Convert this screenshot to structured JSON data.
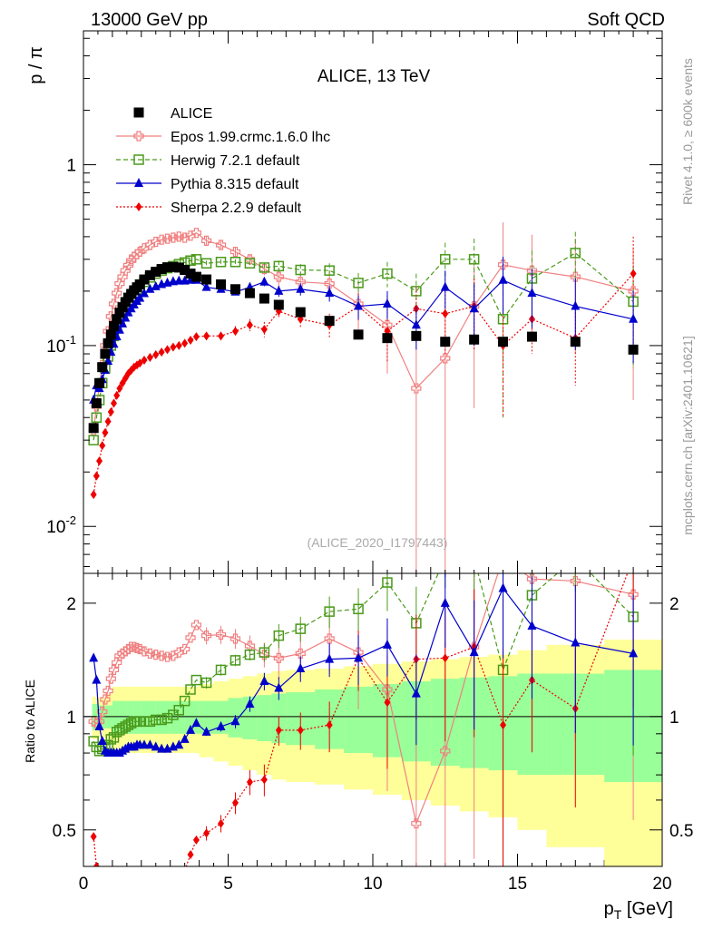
{
  "header": {
    "left": "13000 GeV pp",
    "right": "Soft QCD"
  },
  "side_labels": {
    "rivet": "Rivet 4.1.0, ≥ 600k events",
    "mcplots": "mcplots.cern.ch [arXiv:2401.10621]"
  },
  "chart_data": [
    {
      "type": "scatter",
      "panel": "main",
      "title": "ALICE, 13 TeV",
      "annotation": "(ALICE_2020_I1797443)",
      "xlabel": "p_T [GeV]",
      "ylabel": "p / π",
      "yscale": "log",
      "xlim": [
        0,
        20
      ],
      "ylim": [
        0.0055,
        5.5
      ],
      "yticks": [
        {
          "v": 0.01,
          "label": "10^-2"
        },
        {
          "v": 0.1,
          "label": "10^-1"
        },
        {
          "v": 1,
          "label": "1"
        }
      ],
      "legend_position": "top-left",
      "series": [
        {
          "name": "ALICE",
          "color": "#000000",
          "marker": "square",
          "line": "none",
          "x": [
            0.35,
            0.45,
            0.55,
            0.65,
            0.75,
            0.85,
            0.95,
            1.05,
            1.15,
            1.25,
            1.35,
            1.45,
            1.55,
            1.65,
            1.75,
            1.85,
            1.95,
            2.1,
            2.3,
            2.5,
            2.7,
            2.9,
            3.1,
            3.3,
            3.5,
            3.7,
            3.9,
            4.25,
            4.75,
            5.25,
            5.75,
            6.25,
            6.75,
            7.5,
            8.5,
            9.5,
            10.5,
            11.5,
            12.5,
            13.5,
            14.5,
            15.5,
            17,
            19
          ],
          "y": [
            0.035,
            0.048,
            0.062,
            0.076,
            0.09,
            0.103,
            0.115,
            0.128,
            0.14,
            0.152,
            0.163,
            0.174,
            0.184,
            0.193,
            0.202,
            0.21,
            0.218,
            0.232,
            0.245,
            0.256,
            0.265,
            0.271,
            0.272,
            0.27,
            0.262,
            0.25,
            0.24,
            0.232,
            0.218,
            0.205,
            0.195,
            0.182,
            0.168,
            0.153,
            0.137,
            0.115,
            0.11,
            0.113,
            0.105,
            0.108,
            0.105,
            0.112,
            0.105,
            0.095
          ]
        },
        {
          "name": "Epos 1.99.crmc.1.6.0 lhc",
          "color": "#f08080",
          "marker": "open-cross",
          "line": "solid",
          "x": [
            0.35,
            0.45,
            0.55,
            0.65,
            0.75,
            0.85,
            0.95,
            1.05,
            1.15,
            1.25,
            1.35,
            1.45,
            1.55,
            1.65,
            1.75,
            1.85,
            1.95,
            2.1,
            2.3,
            2.5,
            2.7,
            2.9,
            3.1,
            3.3,
            3.5,
            3.7,
            3.9,
            4.25,
            4.75,
            5.25,
            5.75,
            6.25,
            6.75,
            7.5,
            8.5,
            9.5,
            10.5,
            11.5,
            12.5,
            13.5,
            14.5,
            15.5,
            17,
            19
          ],
          "y": [
            0.034,
            0.046,
            0.06,
            0.078,
            0.1,
            0.12,
            0.145,
            0.17,
            0.195,
            0.22,
            0.24,
            0.26,
            0.278,
            0.295,
            0.31,
            0.32,
            0.33,
            0.345,
            0.36,
            0.375,
            0.385,
            0.39,
            0.395,
            0.4,
            0.395,
            0.405,
            0.42,
            0.38,
            0.36,
            0.33,
            0.3,
            0.265,
            0.24,
            0.225,
            0.22,
            0.17,
            0.13,
            0.058,
            0.085,
            0.165,
            0.28,
            0.26,
            0.24,
            0.2
          ],
          "err": [
            0,
            0,
            0,
            0,
            0,
            0,
            0,
            0,
            0,
            0,
            0,
            0,
            0,
            0,
            0,
            0,
            0,
            0,
            0,
            0,
            0,
            0,
            0,
            0,
            0,
            0,
            0,
            0.02,
            0.02,
            0.02,
            0.02,
            0.02,
            0.03,
            0.03,
            0.04,
            0.05,
            0.06,
            0.06,
            0.08,
            0.12,
            0.2,
            0.15,
            0.15,
            0.15
          ]
        },
        {
          "name": "Herwig 7.2.1 default",
          "color": "#4a9a1a",
          "marker": "open-square",
          "line": "dashed",
          "x": [
            0.35,
            0.45,
            0.55,
            0.65,
            0.75,
            0.85,
            0.95,
            1.05,
            1.15,
            1.25,
            1.35,
            1.45,
            1.55,
            1.65,
            1.75,
            1.85,
            1.95,
            2.1,
            2.3,
            2.5,
            2.7,
            2.9,
            3.1,
            3.3,
            3.5,
            3.7,
            3.9,
            4.25,
            4.75,
            5.25,
            5.75,
            6.25,
            6.75,
            7.5,
            8.5,
            9.5,
            10.5,
            11.5,
            12.5,
            13.5,
            14.5,
            15.5,
            17,
            19
          ],
          "y": [
            0.03,
            0.04,
            0.05,
            0.062,
            0.075,
            0.087,
            0.1,
            0.113,
            0.127,
            0.14,
            0.152,
            0.163,
            0.175,
            0.185,
            0.195,
            0.204,
            0.212,
            0.225,
            0.238,
            0.25,
            0.26,
            0.268,
            0.275,
            0.282,
            0.288,
            0.295,
            0.3,
            0.285,
            0.29,
            0.29,
            0.285,
            0.27,
            0.275,
            0.262,
            0.26,
            0.222,
            0.25,
            0.2,
            0.3,
            0.3,
            0.14,
            0.235,
            0.325,
            0.175
          ],
          "err": [
            0,
            0,
            0,
            0,
            0,
            0,
            0,
            0,
            0,
            0,
            0,
            0,
            0,
            0,
            0,
            0,
            0,
            0,
            0,
            0,
            0,
            0,
            0,
            0,
            0,
            0,
            0,
            0.01,
            0.01,
            0.01,
            0.01,
            0.015,
            0.02,
            0.02,
            0.025,
            0.03,
            0.04,
            0.05,
            0.07,
            0.09,
            0.1,
            0.1,
            0.1,
            0.1
          ]
        },
        {
          "name": "Pythia 8.315 default",
          "color": "#0000cc",
          "marker": "triangle",
          "line": "solid",
          "x": [
            0.35,
            0.45,
            0.55,
            0.65,
            0.75,
            0.85,
            0.95,
            1.05,
            1.15,
            1.25,
            1.35,
            1.45,
            1.55,
            1.65,
            1.75,
            1.85,
            1.95,
            2.1,
            2.3,
            2.5,
            2.7,
            2.9,
            3.1,
            3.3,
            3.5,
            3.7,
            3.9,
            4.25,
            4.75,
            5.25,
            5.75,
            6.25,
            6.75,
            7.5,
            8.5,
            9.5,
            10.5,
            11.5,
            12.5,
            13.5,
            14.5,
            15.5,
            17,
            19
          ],
          "y": [
            0.05,
            0.06,
            0.058,
            0.065,
            0.073,
            0.082,
            0.092,
            0.102,
            0.112,
            0.122,
            0.132,
            0.142,
            0.152,
            0.16,
            0.168,
            0.176,
            0.183,
            0.194,
            0.205,
            0.212,
            0.218,
            0.222,
            0.226,
            0.228,
            0.228,
            0.23,
            0.23,
            0.21,
            0.205,
            0.198,
            0.21,
            0.225,
            0.2,
            0.205,
            0.195,
            0.165,
            0.17,
            0.13,
            0.21,
            0.16,
            0.23,
            0.195,
            0.165,
            0.14
          ],
          "err": [
            0,
            0,
            0,
            0,
            0,
            0,
            0,
            0,
            0,
            0,
            0,
            0,
            0,
            0,
            0,
            0,
            0,
            0,
            0,
            0,
            0,
            0,
            0,
            0,
            0,
            0,
            0,
            0.005,
            0.006,
            0.008,
            0.01,
            0.012,
            0.014,
            0.016,
            0.02,
            0.025,
            0.03,
            0.035,
            0.05,
            0.06,
            0.08,
            0.07,
            0.07,
            0.06
          ]
        },
        {
          "name": "Sherpa 2.2.9 default",
          "color": "#ee0000",
          "marker": "diamond",
          "line": "dotted",
          "x": [
            0.35,
            0.45,
            0.55,
            0.65,
            0.75,
            0.85,
            0.95,
            1.05,
            1.15,
            1.25,
            1.35,
            1.45,
            1.55,
            1.65,
            1.75,
            1.85,
            1.95,
            2.1,
            2.3,
            2.5,
            2.7,
            2.9,
            3.1,
            3.3,
            3.5,
            3.7,
            3.9,
            4.25,
            4.75,
            5.25,
            5.75,
            6.25,
            6.75,
            7.5,
            8.5,
            9.5,
            10.5,
            11.5,
            12.5,
            13.5,
            14.5,
            15.5,
            17,
            19
          ],
          "y": [
            0.015,
            0.019,
            0.023,
            0.028,
            0.033,
            0.038,
            0.043,
            0.048,
            0.053,
            0.058,
            0.062,
            0.066,
            0.07,
            0.073,
            0.076,
            0.078,
            0.08,
            0.083,
            0.086,
            0.089,
            0.092,
            0.095,
            0.098,
            0.1,
            0.103,
            0.107,
            0.112,
            0.113,
            0.113,
            0.12,
            0.13,
            0.123,
            0.155,
            0.14,
            0.13,
            0.165,
            0.12,
            0.16,
            0.15,
            0.165,
            0.1,
            0.14,
            0.11,
            0.25
          ],
          "err": [
            0,
            0,
            0,
            0,
            0,
            0,
            0,
            0,
            0,
            0,
            0,
            0,
            0,
            0,
            0,
            0,
            0,
            0,
            0,
            0,
            0,
            0,
            0,
            0,
            0,
            0,
            0,
            0.005,
            0.006,
            0.008,
            0.01,
            0.012,
            0.014,
            0.016,
            0.02,
            0.03,
            0.04,
            0.05,
            0.06,
            0.07,
            0.06,
            0.05,
            0.05,
            0.15
          ]
        }
      ]
    },
    {
      "type": "scatter",
      "panel": "ratio",
      "ylabel": "Ratio to ALICE",
      "xlabel": "p_T [GeV]",
      "yscale": "log",
      "xlim": [
        0,
        20
      ],
      "ylim": [
        0.4,
        2.4
      ],
      "yticks": [
        {
          "v": 0.5,
          "label": "0.5"
        },
        {
          "v": 1,
          "label": "1"
        },
        {
          "v": 2,
          "label": "2"
        }
      ],
      "xticks": [
        0,
        5,
        10,
        15,
        20
      ],
      "band_edges": [
        0.3,
        0.5,
        0.75,
        1,
        1.25,
        1.5,
        1.75,
        2,
        2.5,
        3,
        3.5,
        4,
        4.5,
        5,
        5.5,
        6,
        6.5,
        7,
        8,
        9,
        10,
        11,
        12,
        13,
        14,
        15,
        16,
        18,
        20
      ],
      "band_stat_sys_inner": [
        0.08,
        0.07,
        0.07,
        0.1,
        0.1,
        0.1,
        0.1,
        0.1,
        0.1,
        0.1,
        0.1,
        0.1,
        0.1,
        0.12,
        0.13,
        0.14,
        0.15,
        0.16,
        0.18,
        0.2,
        0.22,
        0.24,
        0.26,
        0.27,
        0.28,
        0.3,
        0.3,
        0.33
      ],
      "band_outer": [
        0.13,
        0.12,
        0.15,
        0.2,
        0.2,
        0.2,
        0.2,
        0.2,
        0.2,
        0.2,
        0.2,
        0.22,
        0.24,
        0.26,
        0.28,
        0.3,
        0.32,
        0.33,
        0.34,
        0.36,
        0.38,
        0.4,
        0.42,
        0.44,
        0.46,
        0.5,
        0.55,
        0.6
      ],
      "series": [
        {
          "name": "Epos 1.99.crmc.1.6.0 lhc",
          "ratio": [
            0.97,
            0.96,
            0.97,
            1.03,
            1.11,
            1.17,
            1.26,
            1.33,
            1.39,
            1.45,
            1.47,
            1.49,
            1.51,
            1.53,
            1.53,
            1.52,
            1.51,
            1.49,
            1.47,
            1.46,
            1.45,
            1.44,
            1.45,
            1.48,
            1.51,
            1.62,
            1.75,
            1.64,
            1.65,
            1.61,
            1.54,
            1.46,
            1.43,
            1.47,
            1.61,
            1.48,
            1.18,
            0.52,
            0.81,
            1.53,
            2.67,
            2.32,
            2.29,
            2.11
          ]
        },
        {
          "name": "Herwig 7.2.1 default",
          "ratio": [
            0.86,
            0.83,
            0.81,
            0.82,
            0.83,
            0.84,
            0.87,
            0.88,
            0.91,
            0.92,
            0.93,
            0.94,
            0.95,
            0.96,
            0.97,
            0.97,
            0.97,
            0.97,
            0.97,
            0.98,
            0.98,
            0.99,
            1.01,
            1.04,
            1.1,
            1.18,
            1.25,
            1.23,
            1.33,
            1.41,
            1.46,
            1.48,
            1.64,
            1.71,
            1.9,
            1.93,
            2.27,
            1.77,
            2.86,
            2.78,
            1.33,
            2.1,
            3.1,
            1.84
          ]
        },
        {
          "name": "Pythia 8.315 default",
          "ratio": [
            1.43,
            1.25,
            0.94,
            0.86,
            0.81,
            0.8,
            0.8,
            0.8,
            0.8,
            0.8,
            0.81,
            0.82,
            0.83,
            0.83,
            0.83,
            0.84,
            0.84,
            0.84,
            0.84,
            0.83,
            0.82,
            0.82,
            0.83,
            0.84,
            0.87,
            0.92,
            0.96,
            0.91,
            0.94,
            0.97,
            1.08,
            1.24,
            1.19,
            1.34,
            1.42,
            1.43,
            1.55,
            1.15,
            2.0,
            1.48,
            2.19,
            1.74,
            1.57,
            1.47
          ]
        },
        {
          "name": "Sherpa 2.2.9 default",
          "ratio": [
            0.48,
            0.4,
            0.37,
            0.37,
            0.37,
            0.37,
            0.37,
            0.37,
            0.38,
            0.38,
            0.38,
            0.38,
            0.38,
            0.38,
            0.38,
            0.37,
            0.37,
            0.36,
            0.35,
            0.35,
            0.35,
            0.35,
            0.36,
            0.37,
            0.39,
            0.43,
            0.47,
            0.49,
            0.52,
            0.59,
            0.67,
            0.68,
            0.92,
            0.92,
            0.95,
            1.43,
            1.09,
            1.42,
            1.43,
            1.53,
            0.95,
            1.25,
            1.05,
            2.63
          ]
        }
      ]
    }
  ]
}
